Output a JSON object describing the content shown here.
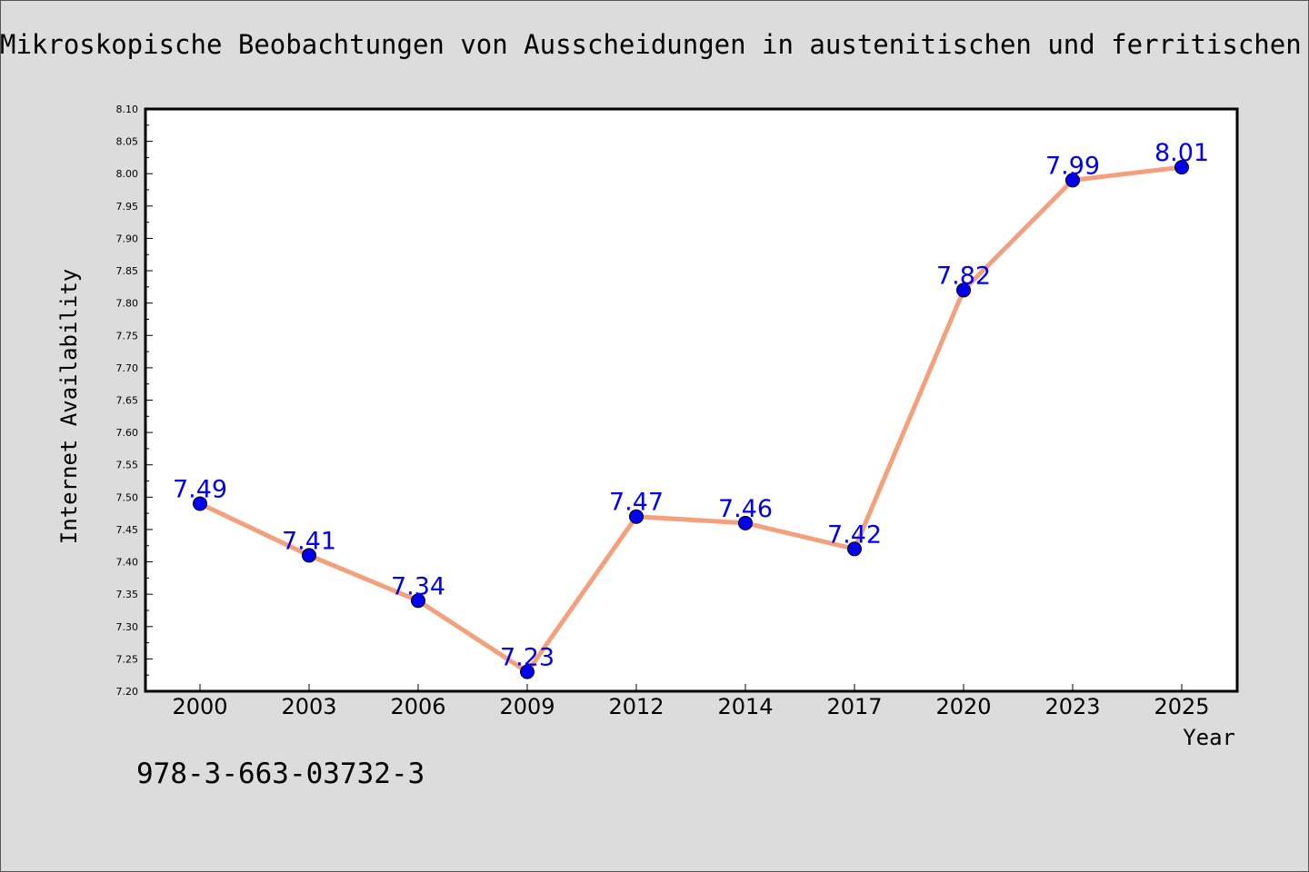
{
  "header": {
    "title": "Mikroskopische Beobachtungen von Ausscheidungen in austenitischen und ferritischen Stählen"
  },
  "footer": {
    "isbn": "978-3-663-03732-3"
  },
  "colors": {
    "background": "#dcdcdc",
    "plot_background": "#ffffff",
    "line": "#f4a07c",
    "marker": "#0000ee",
    "data_label": "#0000ee"
  },
  "chart_data": {
    "type": "line",
    "title": "Mikroskopische Beobachtungen von Ausscheidungen in austenitischen und ferritischen Stählen",
    "xlabel": "Year",
    "ylabel": "Internet Availability",
    "categories": [
      "2000",
      "2003",
      "2006",
      "2009",
      "2012",
      "2014",
      "2017",
      "2020",
      "2023",
      "2025"
    ],
    "series": [
      {
        "values": [
          7.49,
          7.41,
          7.34,
          7.23,
          7.47,
          7.46,
          7.42,
          7.82,
          7.99,
          8.01
        ]
      }
    ],
    "data_labels": [
      "7.49",
      "7.41",
      "7.34",
      "7.23",
      "7.47",
      "7.46",
      "7.42",
      "7.82",
      "7.99",
      "8.01"
    ],
    "ylim": [
      7.2,
      8.1
    ],
    "yticks": [
      "7.20",
      "7.25",
      "7.30",
      "7.35",
      "7.40",
      "7.45",
      "7.50",
      "7.55",
      "7.60",
      "7.65",
      "7.70",
      "7.75",
      "7.80",
      "7.85",
      "7.90",
      "7.95",
      "8.00",
      "8.05",
      "8.10"
    ],
    "grid": false,
    "legend": "none"
  }
}
